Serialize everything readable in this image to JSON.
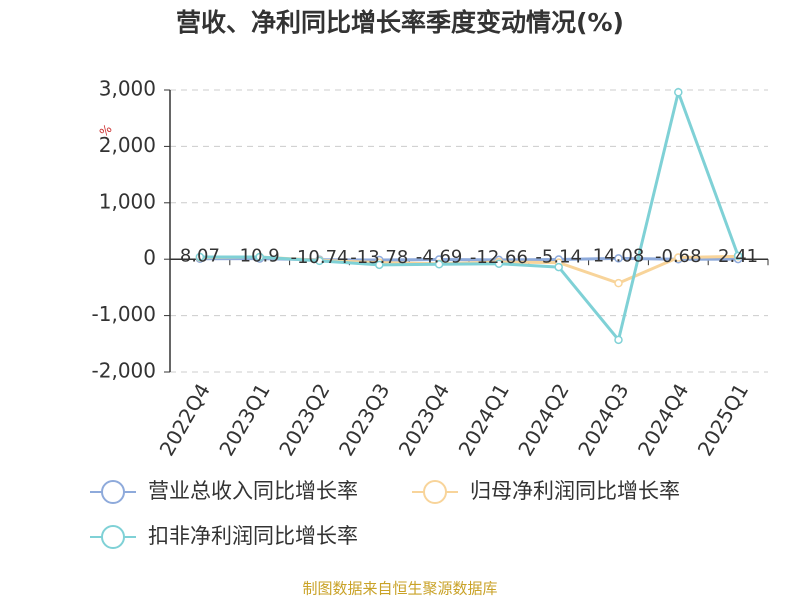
{
  "chart_data": {
    "type": "line",
    "title": "营收、净利同比增长率季度变动情况(%)",
    "y_label": "%",
    "categories": [
      "2022Q4",
      "2023Q1",
      "2023Q2",
      "2023Q3",
      "2023Q4",
      "2024Q1",
      "2024Q2",
      "2024Q3",
      "2024Q4",
      "2025Q1"
    ],
    "series": [
      {
        "name": "营业总收入同比增长率",
        "color": "#8eaadb",
        "values": [
          8.07,
          10.9,
          -10.74,
          -13.78,
          -4.69,
          -12.66,
          -5.14,
          14.08,
          -0.68,
          2.41
        ],
        "show_labels": true
      },
      {
        "name": "归母净利润同比增长率",
        "color": "#f8d49a",
        "values": [
          30,
          40,
          -20,
          -60,
          -80,
          -50,
          -60,
          -425,
          30,
          50
        ]
      },
      {
        "name": "扣非净利润同比增长率",
        "color": "#7fd1d6",
        "values": [
          40,
          40,
          -30,
          -100,
          -90,
          -80,
          -140,
          -1430,
          2960,
          60
        ]
      }
    ],
    "ylim": [
      -2000,
      3000
    ],
    "yticks": [
      {
        "value": -2000,
        "label": "-2,000"
      },
      {
        "value": -1000,
        "label": "-1,000"
      },
      0,
      {
        "value": 1000,
        "label": "1,000"
      },
      {
        "value": 2000,
        "label": "2,000"
      },
      {
        "value": 3000,
        "label": "3,000"
      }
    ],
    "grid": true,
    "legend": "bottom",
    "source": "制图数据来自恒生聚源数据库"
  }
}
